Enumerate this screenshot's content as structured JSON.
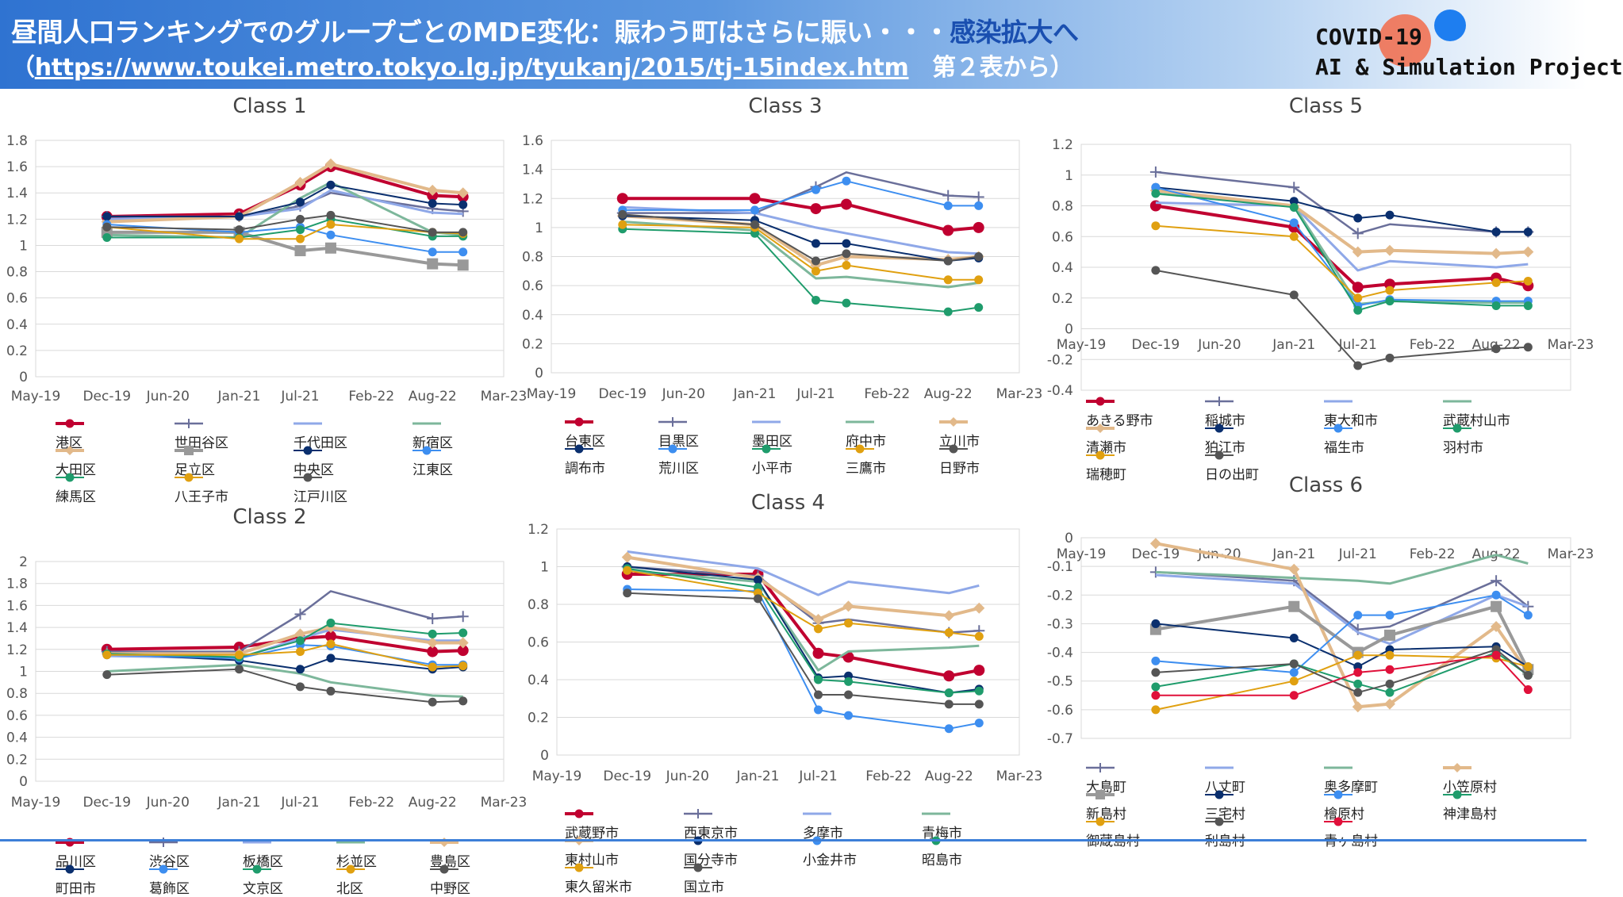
{
  "header": {
    "title_part1": "昼間人口ランキングでのグループごとのMDE変化：賑わう町はさらに賑い・・・",
    "title_part2": "感染拡大へ",
    "subtitle_open": "（",
    "subtitle_url": "https://www.toukei.metro.tokyo.lg.jp/tyukanj/2015/tj-15index.htm",
    "subtitle_rest": "　第２表から）"
  },
  "project": {
    "line1": "COVID-19",
    "line2": "AI & Simulation Project"
  },
  "x_ticks": [
    "May-19",
    "Dec-19",
    "Jun-20",
    "Jan-21",
    "Jul-21",
    "Feb-22",
    "Aug-22",
    "Mar-23"
  ],
  "chart_data": [
    {
      "type": "line",
      "title": "Class 1",
      "x": [
        "Dec-19",
        "Jan-21",
        "Jul-21",
        "Oct-21",
        "Aug-22",
        "Nov-22"
      ],
      "ylim": [
        0,
        1.8
      ],
      "ystep": 0.2,
      "grid": true,
      "legend_position": "bottom",
      "series": [
        {
          "name": "港区",
          "color": "#c00030",
          "marker": "circle",
          "width": 4,
          "values": [
            1.22,
            1.24,
            1.46,
            1.6,
            1.38,
            1.37
          ]
        },
        {
          "name": "世田谷区",
          "color": "#6a6f9a",
          "marker": "plus",
          "width": 2.5,
          "values": [
            1.22,
            1.22,
            1.3,
            1.4,
            1.28,
            1.26
          ]
        },
        {
          "name": "千代田区",
          "color": "#8fa8e8",
          "marker": "none",
          "width": 3,
          "values": [
            1.2,
            1.22,
            1.28,
            1.42,
            1.25,
            1.24
          ]
        },
        {
          "name": "新宿区",
          "color": "#7db79b",
          "marker": "none",
          "width": 3,
          "values": [
            1.08,
            1.06,
            1.36,
            1.48,
            1.1,
            1.08
          ]
        },
        {
          "name": "大田区",
          "color": "#e2b98a",
          "marker": "diamond",
          "width": 4,
          "values": [
            1.18,
            1.22,
            1.48,
            1.62,
            1.42,
            1.4
          ]
        },
        {
          "name": "足立区",
          "color": "#999999",
          "marker": "square",
          "width": 4,
          "values": [
            1.1,
            1.1,
            0.96,
            0.98,
            0.86,
            0.85
          ]
        },
        {
          "name": "中央区",
          "color": "#0a2f6e",
          "marker": "circle",
          "width": 2,
          "values": [
            1.22,
            1.22,
            1.33,
            1.46,
            1.32,
            1.31
          ]
        },
        {
          "name": "江東区",
          "color": "#3d8ef0",
          "marker": "circle",
          "width": 2,
          "values": [
            1.16,
            1.1,
            1.14,
            1.08,
            0.95,
            0.95
          ]
        },
        {
          "name": "練馬区",
          "color": "#1f9c6c",
          "marker": "circle",
          "width": 2,
          "values": [
            1.06,
            1.06,
            1.12,
            1.2,
            1.07,
            1.07
          ]
        },
        {
          "name": "八王子市",
          "color": "#e0a010",
          "marker": "circle",
          "width": 2,
          "values": [
            1.14,
            1.05,
            1.05,
            1.16,
            1.1,
            1.09
          ]
        },
        {
          "name": "江戸川区",
          "color": "#555555",
          "marker": "circle",
          "width": 2,
          "values": [
            1.14,
            1.12,
            1.2,
            1.23,
            1.1,
            1.1
          ]
        }
      ]
    },
    {
      "type": "line",
      "title": "Class 2",
      "x": [
        "Dec-19",
        "Jan-21",
        "Jul-21",
        "Oct-21",
        "Aug-22",
        "Nov-22"
      ],
      "ylim": [
        0,
        2
      ],
      "ystep": 0.2,
      "grid": true,
      "legend_position": "bottom",
      "series": [
        {
          "name": "品川区",
          "color": "#c00030",
          "marker": "circle",
          "width": 4,
          "values": [
            1.2,
            1.22,
            1.3,
            1.32,
            1.18,
            1.19
          ]
        },
        {
          "name": "渋谷区",
          "color": "#6a6f9a",
          "marker": "plus",
          "width": 2.5,
          "values": [
            1.18,
            1.18,
            1.52,
            1.73,
            1.48,
            1.5
          ]
        },
        {
          "name": "板橋区",
          "color": "#8fa8e8",
          "marker": "none",
          "width": 3,
          "values": [
            1.14,
            1.12,
            1.3,
            1.38,
            1.28,
            1.28
          ]
        },
        {
          "name": "杉並区",
          "color": "#7db79b",
          "marker": "none",
          "width": 3,
          "values": [
            1.0,
            1.06,
            0.98,
            0.9,
            0.78,
            0.77
          ]
        },
        {
          "name": "豊島区",
          "color": "#e2b98a",
          "marker": "diamond",
          "width": 4,
          "values": [
            1.16,
            1.16,
            1.34,
            1.4,
            1.26,
            1.26
          ]
        },
        {
          "name": "町田市",
          "color": "#0a2f6e",
          "marker": "circle",
          "width": 2,
          "values": [
            1.16,
            1.1,
            1.02,
            1.12,
            1.02,
            1.04
          ]
        },
        {
          "name": "葛飾区",
          "color": "#3d8ef0",
          "marker": "circle",
          "width": 2,
          "values": [
            1.15,
            1.12,
            1.24,
            1.23,
            1.06,
            1.06
          ]
        },
        {
          "name": "文京区",
          "color": "#1f9c6c",
          "marker": "circle",
          "width": 2,
          "values": [
            1.16,
            1.13,
            1.28,
            1.44,
            1.34,
            1.35
          ]
        },
        {
          "name": "北区",
          "color": "#e0a010",
          "marker": "circle",
          "width": 2,
          "values": [
            1.15,
            1.15,
            1.18,
            1.25,
            1.04,
            1.05
          ]
        },
        {
          "name": "中野区",
          "color": "#555555",
          "marker": "circle",
          "width": 2,
          "values": [
            0.97,
            1.02,
            0.86,
            0.82,
            0.72,
            0.73
          ]
        }
      ]
    },
    {
      "type": "line",
      "title": "Class 3",
      "x": [
        "Dec-19",
        "Jan-21",
        "Jul-21",
        "Oct-21",
        "Aug-22",
        "Nov-22"
      ],
      "ylim": [
        0,
        1.6
      ],
      "ystep": 0.2,
      "grid": true,
      "legend_position": "bottom",
      "series": [
        {
          "name": "台東区",
          "color": "#c00030",
          "marker": "circle",
          "width": 4,
          "values": [
            1.2,
            1.2,
            1.13,
            1.16,
            0.98,
            1.0
          ]
        },
        {
          "name": "目黒区",
          "color": "#6a6f9a",
          "marker": "plus",
          "width": 2.5,
          "values": [
            1.1,
            1.1,
            1.28,
            1.38,
            1.22,
            1.21
          ]
        },
        {
          "name": "墨田区",
          "color": "#8fa8e8",
          "marker": "none",
          "width": 3,
          "values": [
            1.14,
            1.1,
            1.0,
            0.96,
            0.83,
            0.82
          ]
        },
        {
          "name": "府中市",
          "color": "#7db79b",
          "marker": "none",
          "width": 3,
          "values": [
            1.04,
            0.98,
            0.65,
            0.66,
            0.59,
            0.62
          ]
        },
        {
          "name": "立川市",
          "color": "#e2b98a",
          "marker": "diamond",
          "width": 4,
          "values": [
            1.08,
            1.02,
            0.74,
            0.8,
            0.78,
            0.8
          ]
        },
        {
          "name": "調布市",
          "color": "#0a2f6e",
          "marker": "circle",
          "width": 2,
          "values": [
            1.08,
            1.05,
            0.89,
            0.89,
            0.77,
            0.79
          ]
        },
        {
          "name": "荒川区",
          "color": "#3d8ef0",
          "marker": "circle",
          "width": 2,
          "values": [
            1.12,
            1.12,
            1.26,
            1.32,
            1.15,
            1.15
          ]
        },
        {
          "name": "小平市",
          "color": "#1f9c6c",
          "marker": "circle",
          "width": 2,
          "values": [
            0.99,
            0.96,
            0.5,
            0.48,
            0.42,
            0.45
          ]
        },
        {
          "name": "三鷹市",
          "color": "#e0a010",
          "marker": "circle",
          "width": 2,
          "values": [
            1.02,
            1.0,
            0.7,
            0.74,
            0.64,
            0.64
          ]
        },
        {
          "name": "日野市",
          "color": "#555555",
          "marker": "circle",
          "width": 2,
          "values": [
            1.09,
            1.02,
            0.77,
            0.82,
            0.77,
            0.8
          ]
        }
      ]
    },
    {
      "type": "line",
      "title": "Class 4",
      "x": [
        "Dec-19",
        "Jan-21",
        "Jul-21",
        "Oct-21",
        "Aug-22",
        "Nov-22"
      ],
      "ylim": [
        0,
        1.2
      ],
      "ystep": 0.2,
      "grid": true,
      "legend_position": "bottom",
      "series": [
        {
          "name": "武蔵野市",
          "color": "#c00030",
          "marker": "circle",
          "width": 4,
          "values": [
            0.96,
            0.96,
            0.54,
            0.52,
            0.42,
            0.45
          ]
        },
        {
          "name": "西東京市",
          "color": "#6a6f9a",
          "marker": "plus",
          "width": 2.5,
          "values": [
            1.0,
            0.95,
            0.7,
            0.72,
            0.65,
            0.66
          ]
        },
        {
          "name": "多摩市",
          "color": "#8fa8e8",
          "marker": "none",
          "width": 3,
          "values": [
            1.08,
            0.99,
            0.85,
            0.92,
            0.86,
            0.9
          ]
        },
        {
          "name": "青梅市",
          "color": "#7db79b",
          "marker": "none",
          "width": 3,
          "values": [
            0.98,
            0.92,
            0.45,
            0.55,
            0.57,
            0.58
          ]
        },
        {
          "name": "東村山市",
          "color": "#e2b98a",
          "marker": "diamond",
          "width": 4,
          "values": [
            1.05,
            0.94,
            0.72,
            0.79,
            0.74,
            0.78
          ]
        },
        {
          "name": "国分寺市",
          "color": "#0a2f6e",
          "marker": "circle",
          "width": 2,
          "values": [
            1.0,
            0.93,
            0.41,
            0.42,
            0.33,
            0.35
          ]
        },
        {
          "name": "小金井市",
          "color": "#3d8ef0",
          "marker": "circle",
          "width": 2,
          "values": [
            0.88,
            0.87,
            0.24,
            0.21,
            0.14,
            0.17
          ]
        },
        {
          "name": "昭島市",
          "color": "#1f9c6c",
          "marker": "circle",
          "width": 2,
          "values": [
            0.99,
            0.89,
            0.4,
            0.39,
            0.33,
            0.34
          ]
        },
        {
          "name": "東久留米市",
          "color": "#e0a010",
          "marker": "circle",
          "width": 2,
          "values": [
            0.98,
            0.86,
            0.67,
            0.7,
            0.65,
            0.63
          ]
        },
        {
          "name": "国立市",
          "color": "#555555",
          "marker": "circle",
          "width": 2,
          "values": [
            0.86,
            0.83,
            0.32,
            0.32,
            0.27,
            0.27
          ]
        }
      ]
    },
    {
      "type": "line",
      "title": "Class 5",
      "x": [
        "Dec-19",
        "Jan-21",
        "Jul-21",
        "Oct-21",
        "Aug-22",
        "Nov-22"
      ],
      "ylim": [
        -0.4,
        1.2
      ],
      "ystep": 0.2,
      "grid": true,
      "legend_position": "bottom",
      "series": [
        {
          "name": "あきる野市",
          "color": "#c00030",
          "marker": "circle",
          "width": 4,
          "values": [
            0.8,
            0.66,
            0.27,
            0.29,
            0.33,
            0.28
          ]
        },
        {
          "name": "稲城市",
          "color": "#6a6f9a",
          "marker": "plus",
          "width": 2.5,
          "values": [
            1.02,
            0.92,
            0.62,
            0.68,
            0.63,
            0.63
          ]
        },
        {
          "name": "東大和市",
          "color": "#8fa8e8",
          "marker": "none",
          "width": 3,
          "values": [
            0.82,
            0.8,
            0.38,
            0.44,
            0.4,
            0.42
          ]
        },
        {
          "name": "武蔵村山市",
          "color": "#7db79b",
          "marker": "none",
          "width": 3,
          "values": [
            0.88,
            0.8,
            0.16,
            0.18,
            0.17,
            0.17
          ]
        },
        {
          "name": "清瀬市",
          "color": "#e2b98a",
          "marker": "diamond",
          "width": 4,
          "values": [
            0.9,
            0.8,
            0.5,
            0.51,
            0.49,
            0.5
          ]
        },
        {
          "name": "狛江市",
          "color": "#0a2f6e",
          "marker": "circle",
          "width": 2,
          "values": [
            0.92,
            0.83,
            0.72,
            0.74,
            0.63,
            0.63
          ]
        },
        {
          "name": "福生市",
          "color": "#3d8ef0",
          "marker": "circle",
          "width": 2,
          "values": [
            0.92,
            0.69,
            0.15,
            0.19,
            0.18,
            0.18
          ]
        },
        {
          "name": "羽村市",
          "color": "#1f9c6c",
          "marker": "circle",
          "width": 2,
          "values": [
            0.88,
            0.79,
            0.12,
            0.18,
            0.15,
            0.15
          ]
        },
        {
          "name": "瑞穂町",
          "color": "#e0a010",
          "marker": "circle",
          "width": 2,
          "values": [
            0.67,
            0.6,
            0.2,
            0.25,
            0.3,
            0.31
          ]
        },
        {
          "name": "日の出町",
          "color": "#555555",
          "marker": "circle",
          "width": 2,
          "values": [
            0.38,
            0.22,
            -0.24,
            -0.19,
            -0.13,
            -0.12
          ]
        }
      ]
    },
    {
      "type": "line",
      "title": "Class 6",
      "x": [
        "Dec-19",
        "Jan-21",
        "Jul-21",
        "Oct-21",
        "Aug-22",
        "Nov-22"
      ],
      "ylim": [
        -0.7,
        0
      ],
      "ystep": 0.1,
      "grid": true,
      "legend_position": "bottom",
      "series": [
        {
          "name": "大島町",
          "color": "#6a6f9a",
          "marker": "plus",
          "width": 2.5,
          "values": [
            -0.12,
            -0.15,
            -0.32,
            -0.31,
            -0.15,
            -0.24
          ]
        },
        {
          "name": "八丈町",
          "color": "#8fa8e8",
          "marker": "none",
          "width": 3,
          "values": [
            -0.13,
            -0.16,
            -0.33,
            -0.37,
            -0.2,
            -0.24
          ]
        },
        {
          "name": "奥多摩町",
          "color": "#7db79b",
          "marker": "none",
          "width": 3,
          "values": [
            -0.12,
            -0.14,
            -0.15,
            -0.16,
            -0.06,
            -0.09
          ]
        },
        {
          "name": "小笠原村",
          "color": "#e2b98a",
          "marker": "diamond",
          "width": 4,
          "values": [
            -0.02,
            -0.11,
            -0.59,
            -0.58,
            -0.31,
            -0.47
          ]
        },
        {
          "name": "新島村",
          "color": "#999999",
          "marker": "square",
          "width": 4,
          "values": [
            -0.32,
            -0.24,
            -0.4,
            -0.34,
            -0.24,
            -0.46
          ]
        },
        {
          "name": "三宅村",
          "color": "#0a2f6e",
          "marker": "circle",
          "width": 2,
          "values": [
            -0.3,
            -0.35,
            -0.45,
            -0.39,
            -0.38,
            -0.45
          ]
        },
        {
          "name": "檜原村",
          "color": "#3d8ef0",
          "marker": "circle",
          "width": 2,
          "values": [
            -0.43,
            -0.47,
            -0.27,
            -0.27,
            -0.2,
            -0.27
          ]
        },
        {
          "name": "神津島村",
          "color": "#1f9c6c",
          "marker": "circle",
          "width": 2,
          "values": [
            -0.52,
            -0.44,
            -0.51,
            -0.54,
            -0.4,
            -0.48
          ]
        },
        {
          "name": "御蔵島村",
          "color": "#e0a010",
          "marker": "circle",
          "width": 2,
          "values": [
            -0.6,
            -0.5,
            -0.41,
            -0.41,
            -0.42,
            -0.45
          ]
        },
        {
          "name": "利島村",
          "color": "#555555",
          "marker": "circle",
          "width": 2,
          "values": [
            -0.47,
            -0.44,
            -0.54,
            -0.51,
            -0.39,
            -0.48
          ]
        },
        {
          "name": "青ヶ島村",
          "color": "#e0103a",
          "marker": "circle",
          "width": 2,
          "values": [
            -0.55,
            -0.55,
            -0.47,
            -0.46,
            -0.41,
            -0.53
          ]
        }
      ]
    }
  ]
}
